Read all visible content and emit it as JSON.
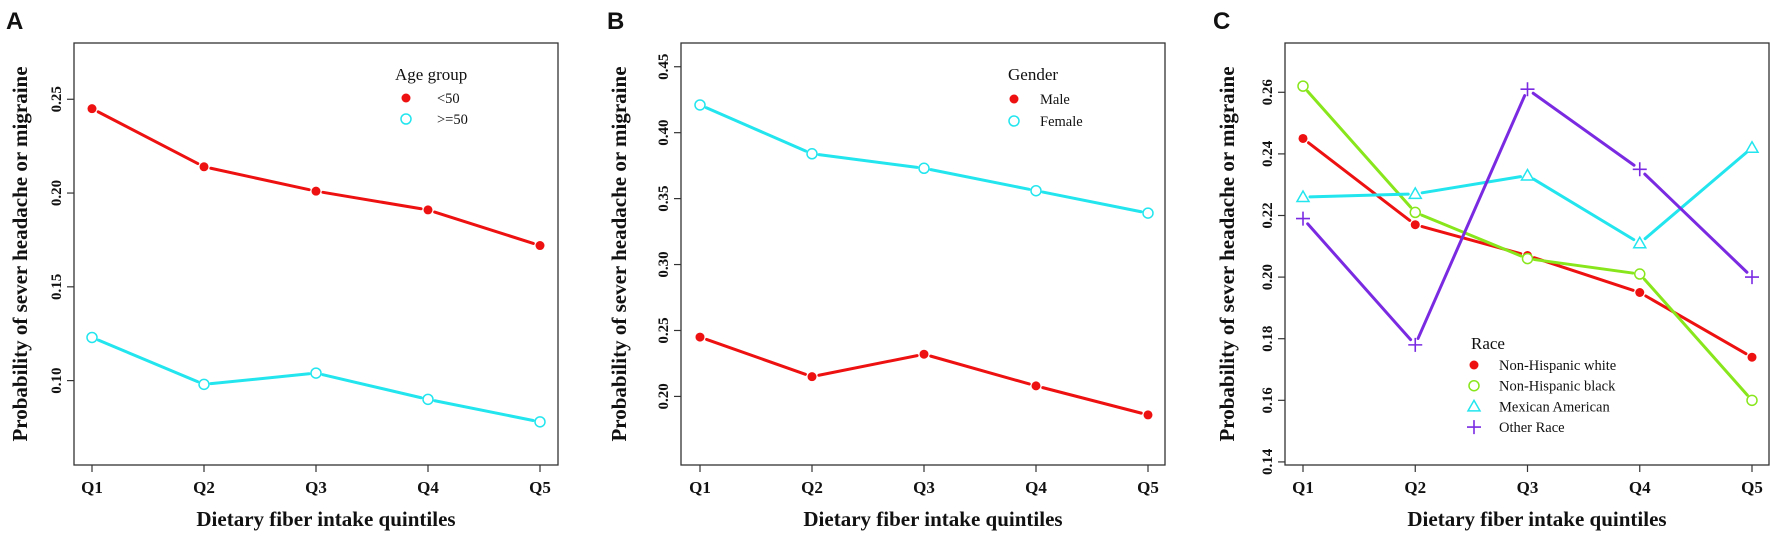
{
  "chart_data": [
    {
      "type": "line",
      "panel": "A",
      "title": "",
      "xlabel": "Dietary fiber intake quintiles",
      "ylabel": "Probability of sever headache or migraine",
      "categories": [
        "Q1",
        "Q2",
        "Q3",
        "Q4",
        "Q5"
      ],
      "yticks": [
        "0.10",
        "0.15",
        "0.20",
        "0.25"
      ],
      "ylim": [
        0.055,
        0.28
      ],
      "legend": {
        "title": "Age group",
        "placement": "top-right"
      },
      "series": [
        {
          "name": "<50",
          "color": "#ee1111",
          "marker": "dot",
          "values": [
            0.245,
            0.214,
            0.201,
            0.191,
            0.172
          ]
        },
        {
          "name": ">=50",
          "color": "#22e5ee",
          "marker": "circle",
          "values": [
            0.123,
            0.098,
            0.104,
            0.09,
            0.078
          ]
        }
      ]
    },
    {
      "type": "line",
      "panel": "B",
      "title": "",
      "xlabel": "Dietary fiber intake quintiles",
      "ylabel": "Probability of sever headache or migraine",
      "categories": [
        "Q1",
        "Q2",
        "Q3",
        "Q4",
        "Q5"
      ],
      "yticks": [
        "0.20",
        "0.25",
        "0.30",
        "0.35",
        "0.40",
        "0.45"
      ],
      "ylim": [
        0.148,
        0.468
      ],
      "legend": {
        "title": "Gender",
        "placement": "top-right"
      },
      "series": [
        {
          "name": "Male",
          "color": "#ee1111",
          "marker": "dot",
          "values": [
            0.245,
            0.215,
            0.232,
            0.208,
            0.186
          ]
        },
        {
          "name": "Female",
          "color": "#22e5ee",
          "marker": "circle",
          "values": [
            0.421,
            0.384,
            0.373,
            0.356,
            0.339
          ]
        }
      ]
    },
    {
      "type": "line",
      "panel": "C",
      "title": "",
      "xlabel": "Dietary fiber intake quintiles",
      "ylabel": "Probability of sever headache or migraine",
      "categories": [
        "Q1",
        "Q2",
        "Q3",
        "Q4",
        "Q5"
      ],
      "yticks": [
        "0.14",
        "0.16",
        "0.18",
        "0.20",
        "0.22",
        "0.24",
        "0.26"
      ],
      "ylim": [
        0.139,
        0.276
      ],
      "legend": {
        "title": "Race",
        "placement": "bottom-center"
      },
      "series": [
        {
          "name": "Non-Hispanic white",
          "color": "#ee1111",
          "marker": "dot",
          "values": [
            0.245,
            0.217,
            0.207,
            0.195,
            0.174
          ]
        },
        {
          "name": "Non-Hispanic black",
          "color": "#88e61c",
          "marker": "circle",
          "values": [
            0.262,
            0.221,
            0.206,
            0.201,
            0.16
          ]
        },
        {
          "name": "Mexican American",
          "color": "#22e5ee",
          "marker": "triangle",
          "values": [
            0.226,
            0.227,
            0.233,
            0.211,
            0.242
          ]
        },
        {
          "name": "Other Race",
          "color": "#7a2be2",
          "marker": "plus",
          "values": [
            0.219,
            0.178,
            0.261,
            0.235,
            0.2
          ]
        }
      ]
    }
  ]
}
